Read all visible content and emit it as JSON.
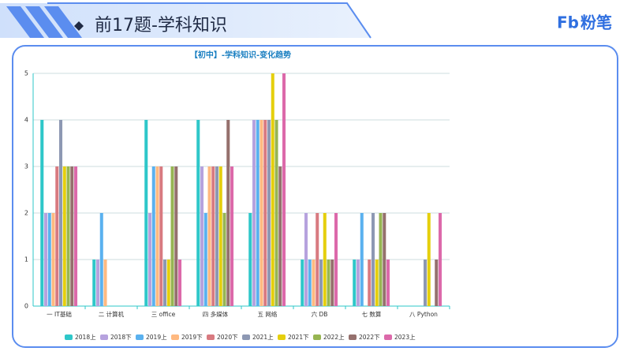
{
  "header": {
    "title": "前17题-学科知识",
    "logo_mark": "Fb",
    "logo_text": "粉笔"
  },
  "chart_data": {
    "type": "bar",
    "title": "【初中】-学科知识-变化趋势",
    "categories": [
      "一 IT基础",
      "二 计算机",
      "三 office",
      "四 多媒体",
      "五 网络",
      "六 DB",
      "七 数算",
      "八 Python"
    ],
    "series": [
      {
        "name": "2018上",
        "color": "#2ec7c9",
        "values": [
          4,
          1,
          4,
          4,
          2,
          1,
          1,
          0
        ]
      },
      {
        "name": "2018下",
        "color": "#b6a2de",
        "values": [
          2,
          1,
          2,
          3,
          4,
          2,
          1,
          0
        ]
      },
      {
        "name": "2019上",
        "color": "#5ab1ef",
        "values": [
          2,
          2,
          3,
          2,
          4,
          1,
          2,
          0
        ]
      },
      {
        "name": "2019下",
        "color": "#ffb980",
        "values": [
          2,
          1,
          3,
          3,
          4,
          1,
          0,
          0
        ]
      },
      {
        "name": "2020下",
        "color": "#d87a80",
        "values": [
          3,
          0,
          3,
          3,
          4,
          2,
          1,
          0
        ]
      },
      {
        "name": "2021上",
        "color": "#8d98b3",
        "values": [
          4,
          0,
          1,
          3,
          4,
          1,
          2,
          1
        ]
      },
      {
        "name": "2021下",
        "color": "#e5cf0d",
        "values": [
          3,
          0,
          1,
          3,
          5,
          2,
          1,
          2
        ]
      },
      {
        "name": "2022上",
        "color": "#97b552",
        "values": [
          3,
          0,
          3,
          2,
          4,
          1,
          2,
          0
        ]
      },
      {
        "name": "2022下",
        "color": "#95706d",
        "values": [
          3,
          0,
          3,
          4,
          3,
          1,
          2,
          1
        ]
      },
      {
        "name": "2023上",
        "color": "#dc69aa",
        "values": [
          3,
          0,
          1,
          3,
          5,
          2,
          1,
          2
        ]
      }
    ],
    "ylim": [
      0,
      5
    ],
    "yticks": [
      0,
      1,
      2,
      3,
      4,
      5
    ],
    "grid": true
  }
}
